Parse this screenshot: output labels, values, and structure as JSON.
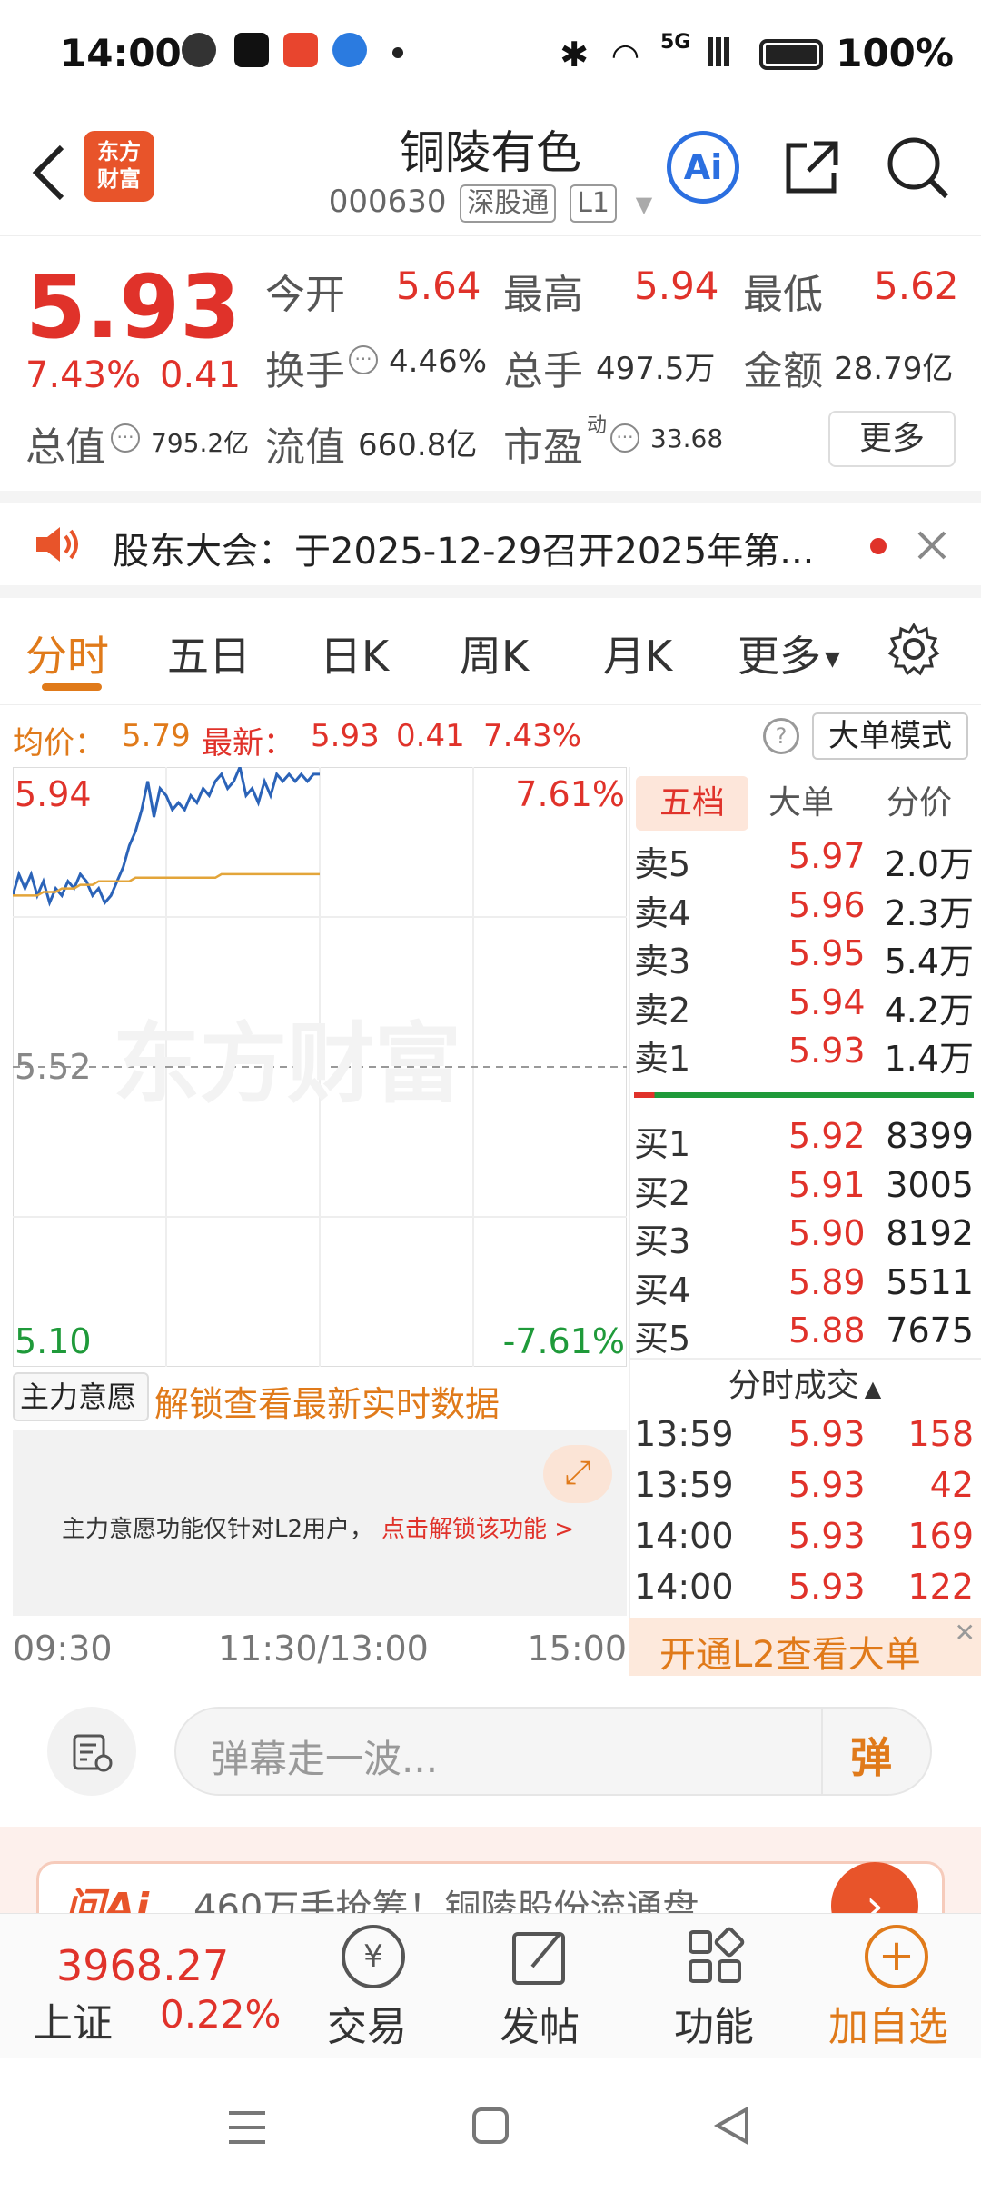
{
  "status_bar": {
    "time": "14:00",
    "network": "5G",
    "battery": "100%"
  },
  "header": {
    "stock_name": "铜陵有色",
    "stock_code": "000630",
    "exchange_tag": "深股通",
    "level_tag": "L1",
    "logo_text_1": "东方",
    "logo_text_2": "财富",
    "ai_label": "Ai"
  },
  "quote": {
    "price": "5.93",
    "change_pct": "7.43%",
    "change": "0.41",
    "open_label": "今开",
    "open": "5.64",
    "high_label": "最高",
    "high": "5.94",
    "low_label": "最低",
    "low": "5.62",
    "turnover_label": "换手",
    "turnover": "4.46%",
    "volume_label": "总手",
    "volume": "497.5万",
    "amount_label": "金额",
    "amount": "28.79亿",
    "mktcap_label": "总值",
    "mktcap": "795.2亿",
    "float_label": "流值",
    "float_cap": "660.8亿",
    "pe_label": "市盈",
    "pe_sup": "动",
    "pe": "33.68",
    "more_button": "更多"
  },
  "announcement": {
    "text": "股东大会：于2025-12-29召开2025年第..."
  },
  "tabs": [
    {
      "label": "分时"
    },
    {
      "label": "五日"
    },
    {
      "label": "日K"
    },
    {
      "label": "周K"
    },
    {
      "label": "月K"
    },
    {
      "label": "更多"
    }
  ],
  "chart_info": {
    "avg_label": "均价：",
    "avg": "5.79",
    "latest_label": "最新：",
    "latest": "5.93",
    "latest_change": "0.41",
    "latest_pct": "7.43%",
    "mode_button": "大单模式"
  },
  "chart_data": {
    "type": "line",
    "ylim": [
      5.1,
      5.94
    ],
    "y_ticks": [
      "5.94",
      "5.52",
      "5.10"
    ],
    "pct_ticks": [
      "7.61%",
      "-7.61%"
    ],
    "x_ticks": [
      "09:30",
      "11:30/13:00",
      "15:00"
    ],
    "reference": 5.52,
    "series": [
      {
        "values": [
          5.76,
          5.79,
          5.77,
          5.79,
          5.76,
          5.78,
          5.75,
          5.77,
          5.76,
          5.78,
          5.77,
          5.79,
          5.78,
          5.76,
          5.77,
          5.75,
          5.76,
          5.78,
          5.8,
          5.83,
          5.85,
          5.88,
          5.92,
          5.87,
          5.91,
          5.9,
          5.88,
          5.89,
          5.88,
          5.9,
          5.89,
          5.91,
          5.9,
          5.92,
          5.93,
          5.91,
          5.92,
          5.94,
          5.9,
          5.91,
          5.89,
          5.92,
          5.9,
          5.93,
          5.92,
          5.93,
          5.92,
          5.93,
          5.92,
          5.93,
          5.93
        ]
      },
      {
        "values": [
          5.76,
          5.76,
          5.76,
          5.76,
          5.76,
          5.765,
          5.765,
          5.765,
          5.77,
          5.77,
          5.77,
          5.775,
          5.775,
          5.775,
          5.78,
          5.78,
          5.78,
          5.78,
          5.78,
          5.78,
          5.785,
          5.785,
          5.785,
          5.785,
          5.785,
          5.785,
          5.785,
          5.785,
          5.785,
          5.785,
          5.785,
          5.785,
          5.785,
          5.785,
          5.79,
          5.79,
          5.79,
          5.79,
          5.79,
          5.79,
          5.79,
          5.79,
          5.79,
          5.79,
          5.79,
          5.79,
          5.79,
          5.79,
          5.79,
          5.79,
          5.79
        ]
      }
    ],
    "watermark": "东方财富"
  },
  "orderbook": {
    "tabs": [
      "五档",
      "大单",
      "分价"
    ],
    "asks": [
      {
        "label": "卖5",
        "price": "5.97",
        "vol": "2.0万"
      },
      {
        "label": "卖4",
        "price": "5.96",
        "vol": "2.3万"
      },
      {
        "label": "卖3",
        "price": "5.95",
        "vol": "5.4万"
      },
      {
        "label": "卖2",
        "price": "5.94",
        "vol": "4.2万"
      },
      {
        "label": "卖1",
        "price": "5.93",
        "vol": "1.4万"
      }
    ],
    "bids": [
      {
        "label": "买1",
        "price": "5.92",
        "vol": "8399"
      },
      {
        "label": "买2",
        "price": "5.91",
        "vol": "3005"
      },
      {
        "label": "买3",
        "price": "5.90",
        "vol": "8192"
      },
      {
        "label": "买4",
        "price": "5.89",
        "vol": "5511"
      },
      {
        "label": "买5",
        "price": "5.88",
        "vol": "7675"
      }
    ],
    "trades_title": "分时成交",
    "trades": [
      {
        "time": "13:59",
        "price": "5.93",
        "vol": "158"
      },
      {
        "time": "13:59",
        "price": "5.93",
        "vol": "42"
      },
      {
        "time": "14:00",
        "price": "5.93",
        "vol": "169"
      },
      {
        "time": "14:00",
        "price": "5.93",
        "vol": "122"
      }
    ],
    "l2_banner": "开通L2查看大单"
  },
  "main_force": {
    "select": "主力意愿",
    "unlock_link": "解锁查看最新实时数据",
    "notice": "主力意愿功能仅针对L2用户，",
    "notice_link": "点击解锁该功能 >"
  },
  "comment_bar": {
    "placeholder": "弹幕走一波...",
    "send_icon_text": "弹"
  },
  "promo": {
    "text": "460万手抢筹！铜陵股份流通盘"
  },
  "bottom_nav": {
    "index_value": "3968.27",
    "index_name": "上证",
    "index_pct": "0.22%",
    "trade": "交易",
    "post": "发帖",
    "function": "功能",
    "add": "加自选"
  },
  "colors": {
    "up": "#e0322a",
    "down": "#1f9a3a",
    "accent": "#e07a1a",
    "price_line": "#2b63b8",
    "avg_line": "#e3a53a"
  }
}
